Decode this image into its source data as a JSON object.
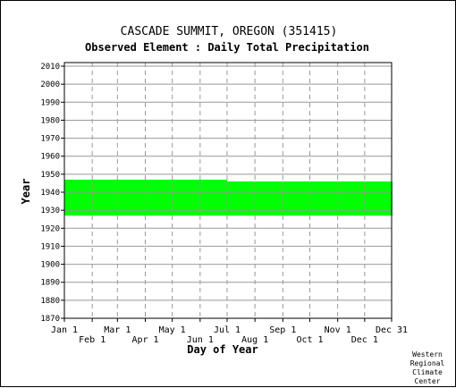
{
  "chart_data": {
    "type": "bar",
    "title": "CASCADE SUMMIT, OREGON   (351415)",
    "subtitle": "Observed Element : Daily Total Precipitation",
    "xlabel": "Day of Year",
    "ylabel": "Year",
    "xlim": [
      "Jan 1",
      "Dec 31"
    ],
    "ylim": [
      1870,
      2012
    ],
    "y_ticks": [
      1870,
      1880,
      1890,
      1900,
      1910,
      1920,
      1930,
      1940,
      1950,
      1960,
      1970,
      1980,
      1990,
      2000,
      2010
    ],
    "x_ticks_upper": [
      "Jan 1",
      "Mar 1",
      "May 1",
      "Jul 1",
      "Sep 1",
      "Nov 1",
      "Dec 31"
    ],
    "x_ticks_lower": [
      "Feb 1",
      "Apr 1",
      "Jun 1",
      "Aug 1",
      "Oct 1",
      "Dec 1"
    ],
    "grid": true,
    "series": [
      {
        "color": "#00ff00",
        "segments": [
          {
            "start": "Jan 1",
            "end": "Jun 30",
            "year_from": 1927,
            "year_to": 1947
          },
          {
            "start": "Jul 1",
            "end": "Dec 31",
            "year_from": 1927,
            "year_to": 1946
          }
        ]
      }
    ]
  },
  "credit": [
    "Western",
    "Regional",
    "Climate",
    "Center"
  ]
}
